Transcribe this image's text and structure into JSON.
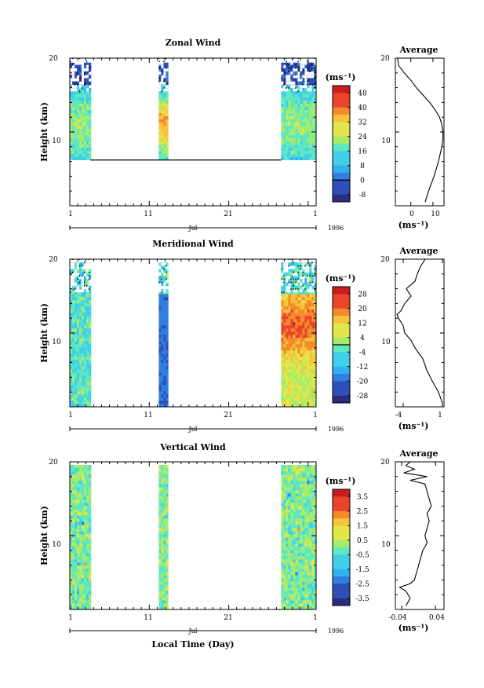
{
  "chart_data": [
    {
      "type": "heatmap",
      "title": "Zonal Wind",
      "ylabel": "Height (km)",
      "xlabel": "",
      "ylim": [
        0,
        20
      ],
      "yticks": [
        "20",
        "10"
      ],
      "xticks": [
        "1",
        "11",
        "21",
        "1"
      ],
      "month_label": "Jul",
      "year_label": "1996",
      "data_intervals_day": [
        [
          1,
          3.6
        ],
        [
          12.2,
          13.2
        ],
        [
          27.6,
          32
        ]
      ],
      "missing_below_km": 6.2,
      "colorbar": {
        "unit": "(ms⁻¹)",
        "ticks": [
          "48",
          "40",
          "32",
          "24",
          "16",
          "8",
          "0",
          "-8"
        ],
        "range": [
          -12,
          52
        ],
        "zero_line": 0
      },
      "average": {
        "title": "Average",
        "xlabel": "(ms⁻¹)",
        "xticks": [
          "0",
          "10"
        ],
        "xlim": [
          -7,
          15
        ],
        "height_km": [
          0.5,
          2,
          4,
          6,
          8,
          9,
          10,
          11,
          12,
          13,
          14,
          15,
          16,
          17,
          18,
          19,
          20
        ],
        "value": [
          6.5,
          8,
          10.5,
          12.5,
          14,
          14.5,
          14.5,
          14,
          13,
          11,
          8.5,
          5.5,
          2.5,
          0,
          -3,
          -5.5,
          -6
        ]
      }
    },
    {
      "type": "heatmap",
      "title": "Meridional Wind",
      "ylabel": "Height (km)",
      "xlabel": "",
      "ylim": [
        0,
        20
      ],
      "yticks": [
        "20",
        "10"
      ],
      "xticks": [
        "1",
        "11",
        "21",
        "1"
      ],
      "month_label": "Jul",
      "year_label": "1996",
      "data_intervals_day": [
        [
          1,
          3.6
        ],
        [
          12.2,
          13.2
        ],
        [
          27.6,
          32
        ]
      ],
      "missing_below_km": 0,
      "colorbar": {
        "unit": "(ms⁻¹)",
        "ticks": [
          "28",
          "20",
          "12",
          "4",
          "-4",
          "-12",
          "-20",
          "-28"
        ],
        "range": [
          -32,
          32
        ],
        "zero_line": 0
      },
      "average": {
        "title": "Average",
        "xlabel": "(ms⁻¹)",
        "xticks": [
          "-4",
          "1"
        ],
        "xlim": [
          -5,
          1.2
        ],
        "height_km": [
          0.5,
          2,
          3.5,
          5,
          6.5,
          8,
          9,
          10,
          11,
          11.5,
          12,
          12.5,
          13,
          14,
          15,
          16,
          17,
          18,
          19,
          20
        ],
        "value": [
          1,
          0.5,
          -0.3,
          -1,
          -1.5,
          -2.5,
          -3,
          -3.8,
          -4,
          -4.3,
          -4.6,
          -4.8,
          -4.3,
          -3.8,
          -3,
          -3.6,
          -2.5,
          -2.2,
          -1.8,
          -1.2
        ]
      }
    },
    {
      "type": "heatmap",
      "title": "Vertical Wind",
      "ylabel": "Height (km)",
      "xlabel": "Local Time (Day)",
      "ylim": [
        0,
        20
      ],
      "yticks": [
        "20",
        "10"
      ],
      "xticks": [
        "1",
        "11",
        "21",
        "1"
      ],
      "month_label": "Jul",
      "year_label": "1996",
      "data_intervals_day": [
        [
          1,
          3.6
        ],
        [
          12.2,
          13.2
        ],
        [
          27.6,
          32
        ]
      ],
      "missing_below_km": 0,
      "colorbar": {
        "unit": "(ms⁻¹)",
        "ticks": [
          "3.5",
          "2.5",
          "1.5",
          "0.5",
          "-0.5",
          "-1.5",
          "-2.5",
          "-3.5"
        ],
        "range": [
          -4,
          4
        ],
        "zero_line": null
      },
      "average": {
        "title": "Average",
        "xlabel": "(ms⁻¹)",
        "xticks": [
          "-0.04",
          "0.04"
        ],
        "xlim": [
          -0.055,
          0.06
        ],
        "height_km": [
          0.5,
          1.5,
          2.5,
          3,
          3.5,
          4,
          5,
          6,
          7,
          8,
          9,
          10,
          11,
          12,
          13,
          14,
          15,
          16,
          17,
          17.5,
          18,
          18.5,
          19,
          19.5,
          20
        ],
        "value": [
          -0.03,
          -0.02,
          -0.03,
          -0.045,
          -0.02,
          -0.01,
          -0.005,
          0.0,
          0.005,
          0.01,
          0.02,
          0.015,
          0.02,
          0.025,
          0.02,
          0.03,
          0.025,
          0.02,
          0.015,
          -0.02,
          0.02,
          -0.035,
          -0.01,
          -0.03,
          -0.02
        ]
      }
    }
  ],
  "colormap": [
    "#2c2d7c",
    "#2f4fb8",
    "#2f7ee0",
    "#33aef0",
    "#3fd0e8",
    "#5fe8c0",
    "#a6ec6a",
    "#e2e64a",
    "#f7c33a",
    "#f48a2c",
    "#e8452a",
    "#c81d1d"
  ]
}
